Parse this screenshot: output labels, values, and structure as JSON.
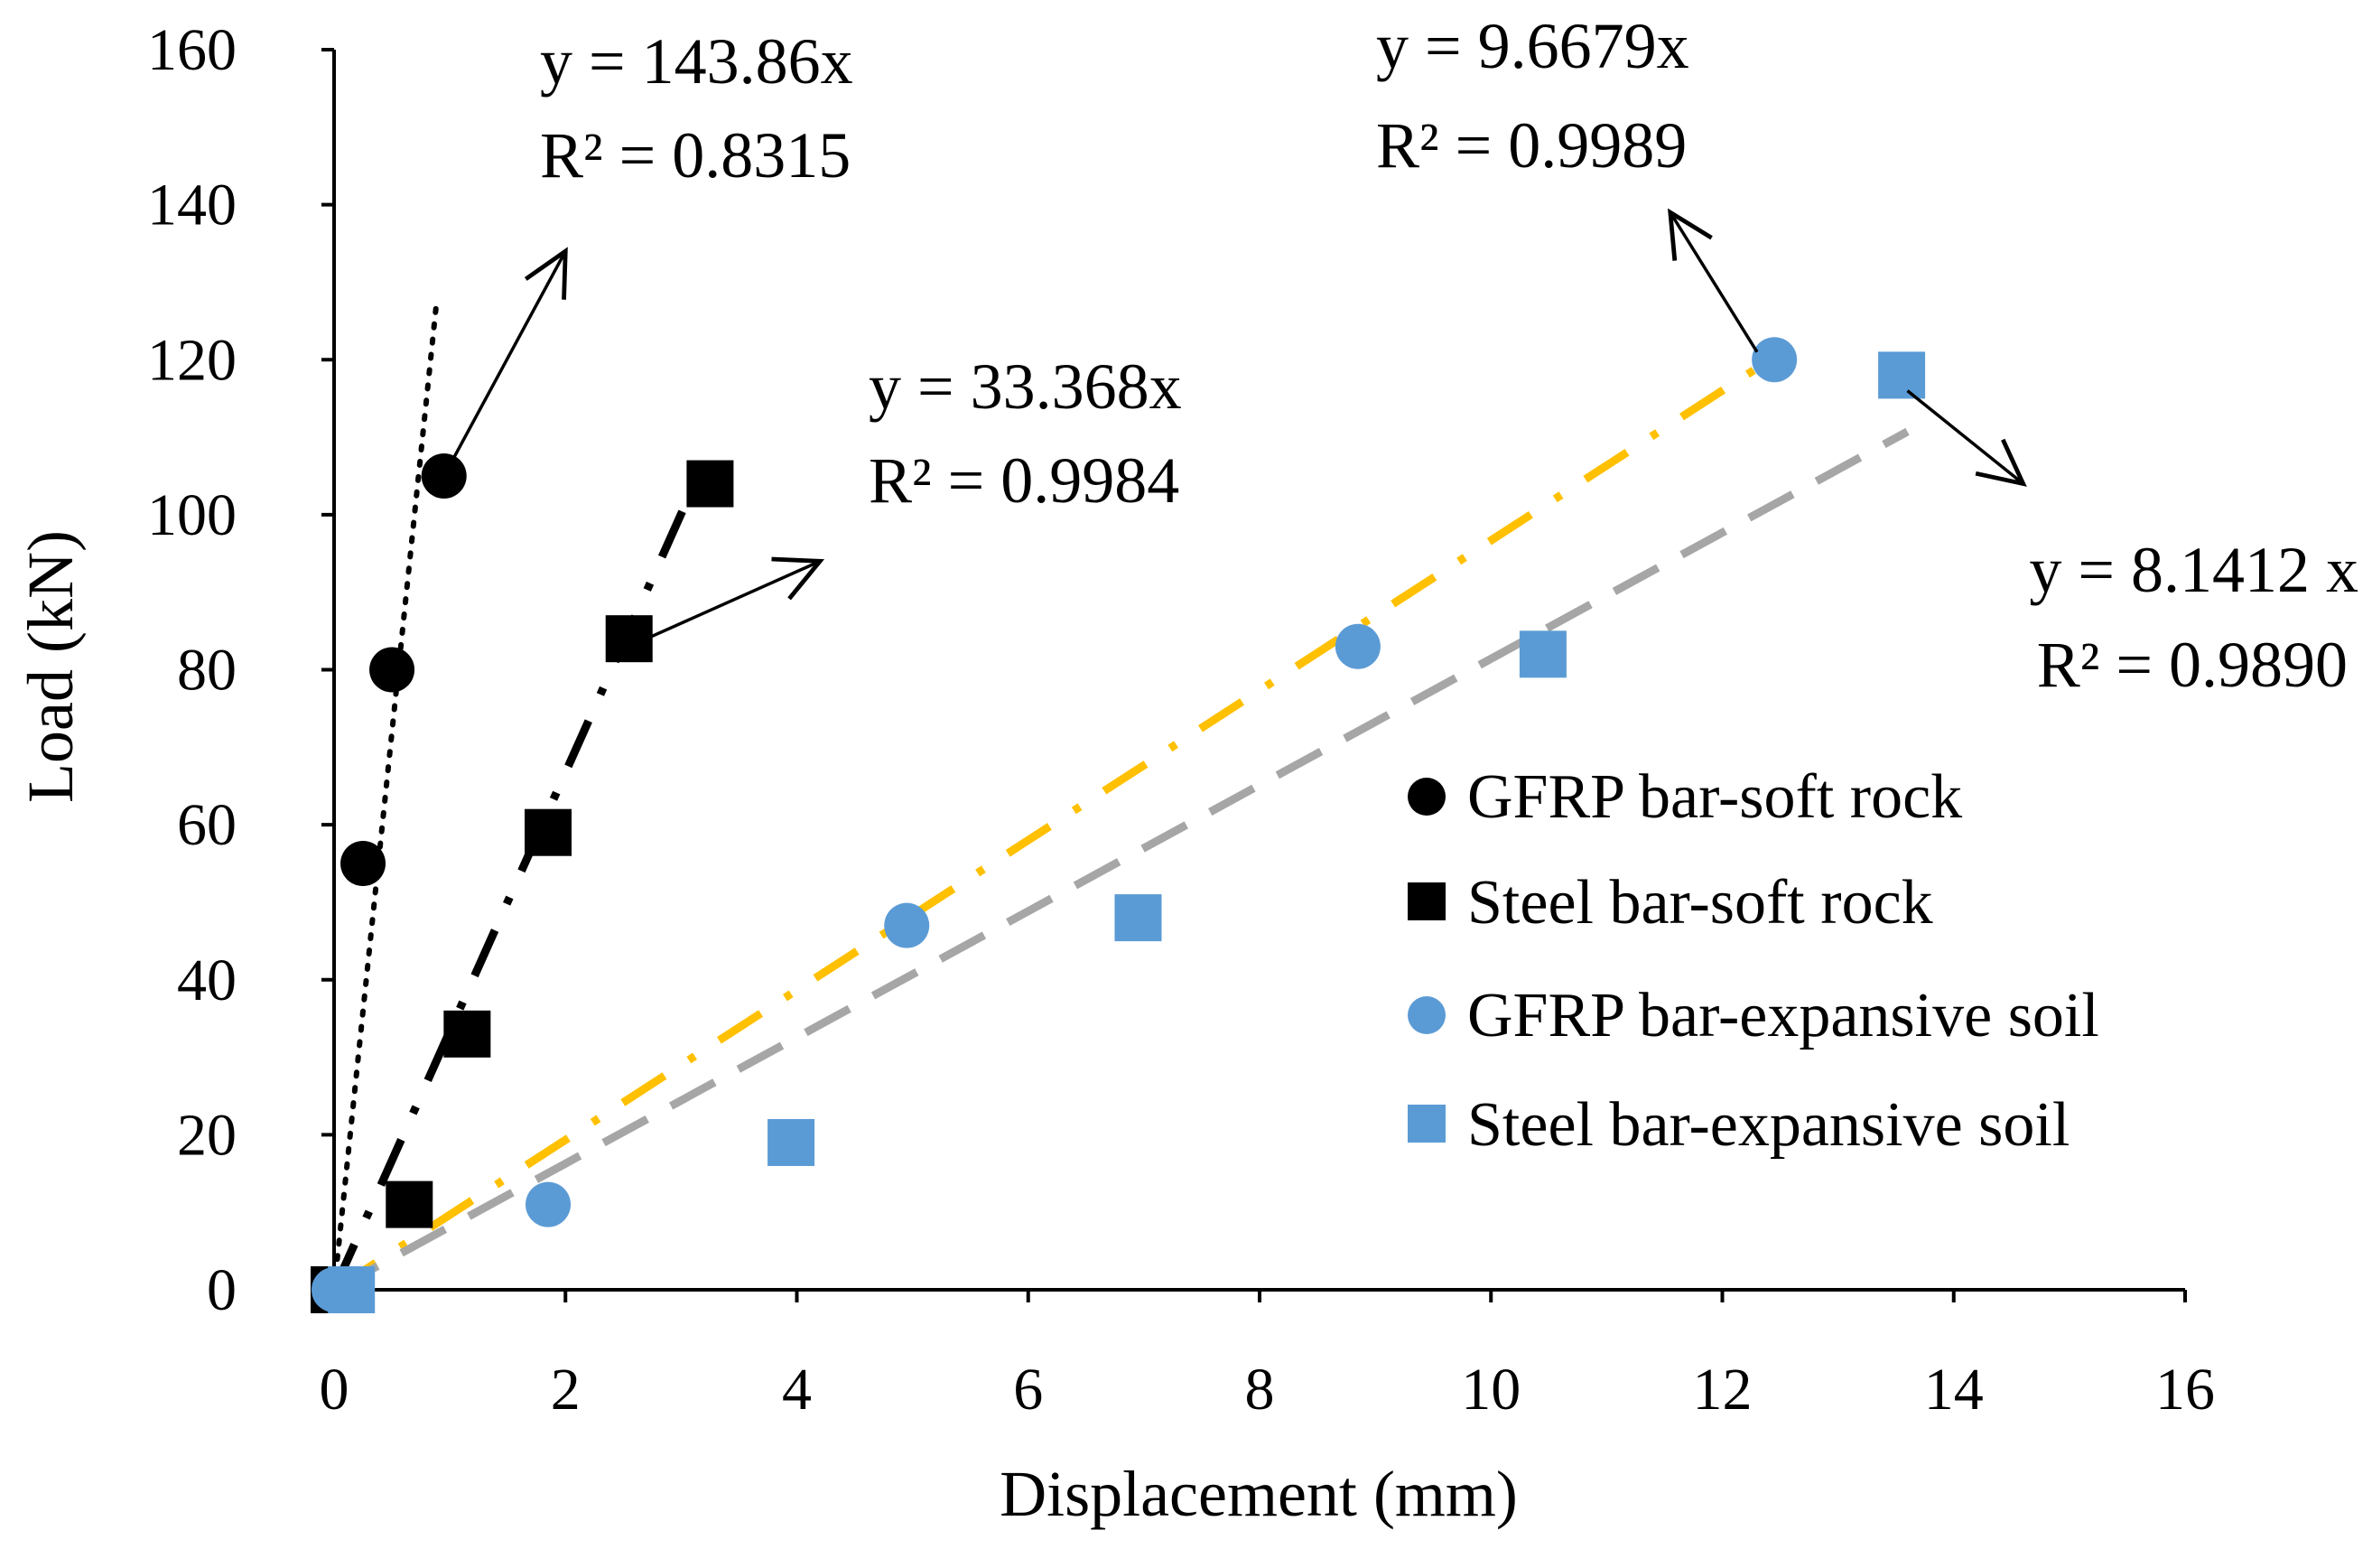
{
  "chart_data": {
    "type": "scatter",
    "title": "",
    "xlabel": "Displacement (mm)",
    "ylabel": "Load (kN)",
    "xlim": [
      0,
      16
    ],
    "ylim": [
      0,
      160
    ],
    "xticks": [
      0,
      2,
      4,
      6,
      8,
      10,
      12,
      14,
      16
    ],
    "yticks": [
      0,
      20,
      40,
      60,
      80,
      100,
      120,
      140,
      160
    ],
    "grid": false,
    "legend_position": "right",
    "series": [
      {
        "name": "GFRP bar-soft rock",
        "marker": "circle",
        "color": "#000000",
        "x": [
          0,
          0.25,
          0.5,
          0.95
        ],
        "y": [
          0,
          55,
          80,
          105
        ],
        "trendline": {
          "slope": 143.86,
          "x_range": [
            0,
            0.88
          ],
          "style": "dotted",
          "color": "#000000"
        },
        "equation": "y = 143.86x",
        "r2": "R² = 0.8315"
      },
      {
        "name": "Steel bar-soft rock",
        "marker": "square",
        "color": "#000000",
        "x": [
          0,
          0.65,
          1.15,
          1.85,
          2.55,
          3.25
        ],
        "y": [
          0,
          11,
          33,
          59,
          84,
          104
        ],
        "trendline": {
          "slope": 33.368,
          "x_range": [
            0,
            3.2
          ],
          "style": "longdash-dot",
          "color": "#000000"
        },
        "equation": "y = 33.368x",
        "r2": "R² = 0.9984"
      },
      {
        "name": "GFRP bar-expansive soil",
        "marker": "circle",
        "color": "#5b9bd5",
        "x": [
          0,
          1.85,
          4.95,
          8.85,
          12.45
        ],
        "y": [
          0,
          11,
          47,
          83,
          120
        ],
        "trendline": {
          "slope": 9.6679,
          "x_range": [
            0,
            12.3
          ],
          "style": "longdash-dot",
          "color": "#ffc000"
        },
        "equation": "y = 9.6679x",
        "r2": "R² = 0.9989"
      },
      {
        "name": "Steel bar-expansive soil",
        "marker": "square",
        "color": "#5b9bd5",
        "x": [
          0.15,
          3.95,
          6.95,
          10.45,
          13.55
        ],
        "y": [
          0,
          19,
          48,
          82,
          118
        ],
        "trendline": {
          "slope": 8.1412,
          "x_range": [
            0,
            13.6
          ],
          "style": "dashed",
          "color": "#a6a6a6"
        },
        "equation": "y = 8.1412 x",
        "r2": "R² = 0.9890"
      }
    ],
    "annotations": [
      {
        "series": 0,
        "arrow_from": [
          0.95,
          105
        ],
        "arrow_to": [
          2.0,
          134
        ]
      },
      {
        "series": 1,
        "arrow_from": [
          2.7,
          84
        ],
        "arrow_to": [
          4.2,
          94
        ]
      },
      {
        "series": 2,
        "arrow_from": [
          12.3,
          121
        ],
        "arrow_to": [
          11.55,
          139
        ]
      },
      {
        "series": 3,
        "arrow_from": [
          13.6,
          116
        ],
        "arrow_to": [
          14.6,
          104
        ]
      }
    ]
  }
}
